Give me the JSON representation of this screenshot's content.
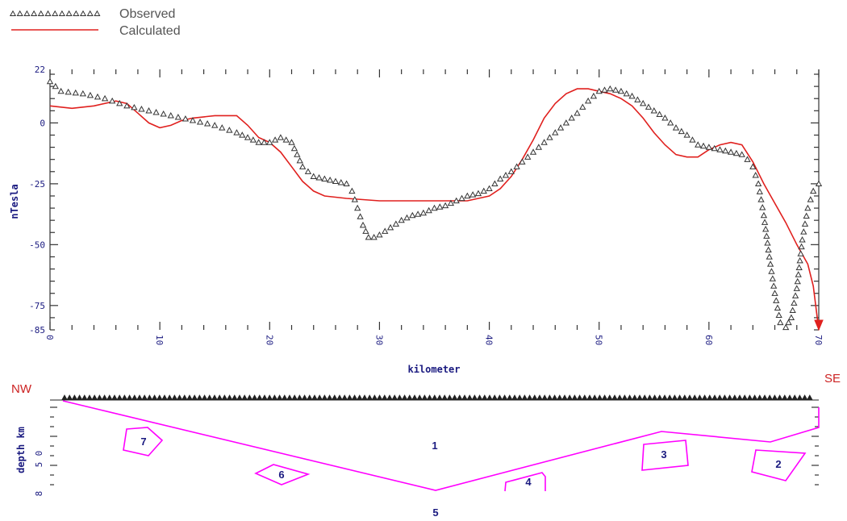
{
  "legend": {
    "observed_label": "Observed",
    "calculated_label": "Calculated"
  },
  "colors": {
    "observed": "#333333",
    "calculated": "#e0201e",
    "polygons": "#ff00ff",
    "axis": "#333333",
    "text": "#1a1a80",
    "direction": "#cc2222"
  },
  "chart_data": [
    {
      "type": "line",
      "xlabel": "kilometer",
      "ylabel": "nTesla",
      "xlim": [
        0,
        70
      ],
      "ylim": [
        -85,
        22
      ],
      "x_ticks": [
        "0",
        "10",
        "20",
        "30",
        "40",
        "50",
        "60",
        "70"
      ],
      "y_ticks": [
        "22",
        "0",
        "-25",
        "-50",
        "-75",
        "-85"
      ],
      "series": [
        {
          "name": "Observed",
          "marker": "triangle",
          "x": [
            0,
            1,
            3,
            5,
            7,
            9,
            11,
            13,
            15,
            17,
            18,
            19,
            20,
            21,
            22,
            23,
            24,
            25,
            26,
            27,
            27.5,
            28,
            28.5,
            29,
            29.5,
            30,
            31,
            32,
            33,
            34,
            35,
            36,
            37,
            38,
            39,
            40,
            41,
            42,
            43,
            44,
            45,
            46,
            47,
            48,
            49,
            50,
            51,
            52,
            53,
            54,
            55,
            56,
            57,
            58,
            59,
            60,
            61,
            62,
            63,
            63.5,
            64,
            64.5,
            65,
            65.5,
            66,
            66.5,
            67,
            67.5,
            68,
            68.5,
            69,
            69.5,
            70
          ],
          "y": [
            17,
            13,
            12,
            10,
            7,
            5,
            3,
            1,
            -1,
            -4,
            -6,
            -8,
            -8,
            -6,
            -8,
            -18,
            -22,
            -23,
            -24,
            -25,
            -28,
            -35,
            -42,
            -47,
            -47,
            -46,
            -43,
            -40,
            -38,
            -37,
            -35,
            -34,
            -32,
            -30,
            -29,
            -27,
            -23,
            -20,
            -16,
            -12,
            -8,
            -4,
            0,
            4,
            9,
            13,
            14,
            13,
            11,
            8,
            5,
            2,
            -2,
            -5,
            -9,
            -10,
            -11,
            -12,
            -13,
            -15,
            -18,
            -25,
            -38,
            -55,
            -70,
            -82,
            -84,
            -80,
            -68,
            -48,
            -35,
            -28,
            -25
          ]
        },
        {
          "name": "Calculated",
          "x": [
            0,
            2,
            4,
            6,
            7,
            8,
            9,
            10,
            11,
            12,
            13,
            15,
            17,
            18,
            19,
            20,
            21,
            22,
            23,
            24,
            25,
            27,
            30,
            33,
            36,
            38,
            39,
            40,
            41,
            42,
            43,
            44,
            45,
            46,
            47,
            48,
            49,
            50,
            51,
            52,
            53,
            54,
            55,
            56,
            57,
            58,
            59,
            60,
            61,
            62,
            63,
            64,
            65,
            66,
            67,
            68,
            69,
            69.5,
            70
          ],
          "y": [
            7,
            6,
            7,
            9,
            8,
            4,
            0,
            -2,
            -1,
            1,
            2,
            3,
            3,
            -1,
            -6,
            -8,
            -12,
            -18,
            -24,
            -28,
            -30,
            -31,
            -32,
            -32,
            -32,
            -32,
            -31,
            -30,
            -27,
            -22,
            -15,
            -7,
            2,
            8,
            12,
            14,
            14,
            13,
            12,
            10,
            7,
            2,
            -4,
            -9,
            -13,
            -14,
            -14,
            -11,
            -9,
            -8,
            -9,
            -16,
            -25,
            -33,
            -41,
            -50,
            -58,
            -67,
            -85
          ]
        }
      ]
    },
    {
      "type": "diagram",
      "xlabel": "",
      "ylabel": "depth km",
      "y_ticks": [
        "0",
        "5",
        "8"
      ],
      "direction_left": "NW",
      "direction_right": "SE",
      "body_labels": [
        "1",
        "2",
        "3",
        "4",
        "5",
        "6",
        "7"
      ]
    }
  ]
}
